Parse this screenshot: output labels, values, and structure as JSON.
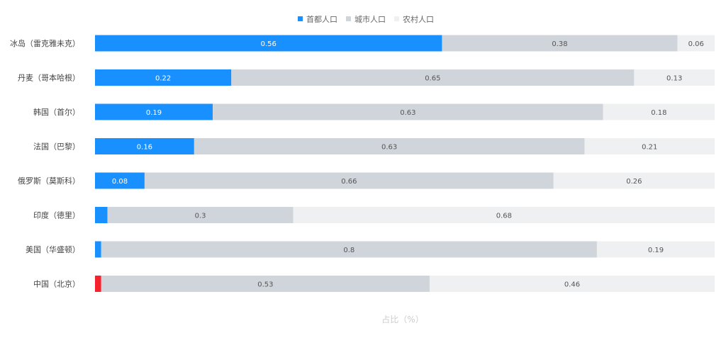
{
  "chart_data": {
    "type": "bar",
    "orientation": "horizontal",
    "stacked": true,
    "xlabel": "占比（%）",
    "ylabel": "",
    "xlim": [
      0,
      1
    ],
    "grid": false,
    "legend_position": "top-center",
    "categories": [
      "冰岛（雷克雅未克）",
      "丹麦（哥本哈根）",
      "韩国（首尔）",
      "法国（巴黎）",
      "俄罗斯（莫斯科）",
      "印度（德里）",
      "美国（华盛顿）",
      "中国（北京）"
    ],
    "series": [
      {
        "name": "首都人口",
        "color": "#1890ff",
        "label_color": "#ffffff",
        "values": [
          0.56,
          0.22,
          0.19,
          0.16,
          0.08,
          0.02,
          0.01,
          0.01
        ],
        "labels": [
          "0.56",
          "0.22",
          "0.19",
          "0.16",
          "0.08",
          "",
          "",
          ""
        ]
      },
      {
        "name": "城市人口",
        "color": "#d0d5db",
        "label_color": "#555555",
        "values": [
          0.38,
          0.65,
          0.63,
          0.63,
          0.66,
          0.3,
          0.8,
          0.53
        ],
        "labels": [
          "0.38",
          "0.65",
          "0.63",
          "0.63",
          "0.66",
          "0.3",
          "0.8",
          "0.53"
        ]
      },
      {
        "name": "农村人口",
        "color": "#eff0f2",
        "label_color": "#555555",
        "values": [
          0.06,
          0.13,
          0.18,
          0.21,
          0.26,
          0.68,
          0.19,
          0.46
        ],
        "labels": [
          "0.06",
          "0.13",
          "0.18",
          "0.21",
          "0.26",
          "0.68",
          "0.19",
          "0.46"
        ]
      }
    ],
    "highlight": {
      "category_index": 7,
      "series_index": 0,
      "color": "#f5222d"
    }
  }
}
